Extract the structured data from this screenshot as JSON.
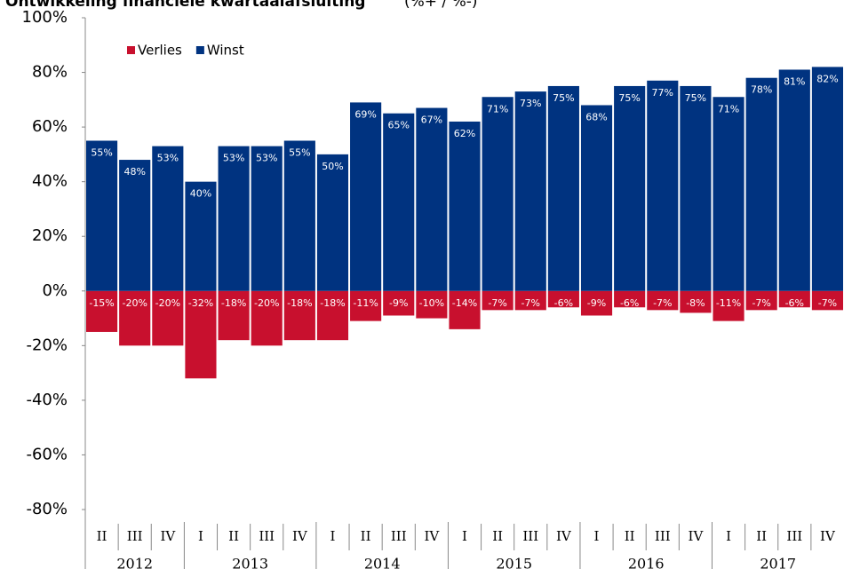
{
  "chart_data": {
    "type": "bar",
    "title": "Ontwikkeling financiele kwartaalafsluiting",
    "subtitle": "(%+ / %-)",
    "groups": [
      {
        "year": "2012",
        "quarters": [
          "II",
          "III",
          "IV"
        ]
      },
      {
        "year": "2013",
        "quarters": [
          "I",
          "II",
          "III",
          "IV"
        ]
      },
      {
        "year": "2014",
        "quarters": [
          "I",
          "II",
          "III",
          "IV"
        ]
      },
      {
        "year": "2015",
        "quarters": [
          "I",
          "II",
          "III",
          "IV"
        ]
      },
      {
        "year": "2016",
        "quarters": [
          "I",
          "II",
          "III",
          "IV"
        ]
      },
      {
        "year": "2017",
        "quarters": [
          "I",
          "II",
          "III",
          "IV"
        ]
      }
    ],
    "series": [
      {
        "name": "Verlies",
        "color": "#c8102e",
        "values": [
          -15,
          -20,
          -20,
          -32,
          -18,
          -20,
          -18,
          -18,
          -11,
          -9,
          -10,
          -14,
          -7,
          -7,
          -6,
          -9,
          -6,
          -7,
          -8,
          -11,
          -7,
          -6,
          -7
        ],
        "value_labels": [
          "-15%",
          "-20%",
          "-20%",
          "-32%",
          "-18%",
          "-20%",
          "-18%",
          "-18%",
          "-11%",
          "-9%",
          "-10%",
          "-14%",
          "-7%",
          "-7%",
          "-6%",
          "-9%",
          "-6%",
          "-7%",
          "-8%",
          "-11%",
          "-7%",
          "-6%",
          "-7%"
        ]
      },
      {
        "name": "Winst",
        "color": "#003380",
        "values": [
          55,
          48,
          53,
          40,
          53,
          53,
          55,
          50,
          69,
          65,
          67,
          62,
          71,
          73,
          75,
          68,
          75,
          77,
          75,
          71,
          78,
          81,
          82
        ],
        "value_labels": [
          "55%",
          "48%",
          "53%",
          "40%",
          "53%",
          "53%",
          "55%",
          "50%",
          "69%",
          "65%",
          "67%",
          "62%",
          "71%",
          "73%",
          "75%",
          "68%",
          "75%",
          "77%",
          "75%",
          "71%",
          "78%",
          "81%",
          "82%"
        ]
      }
    ],
    "ylim": [
      -80,
      100
    ],
    "yticks": [
      {
        "value": -80,
        "label": "-80%"
      },
      {
        "value": -60,
        "label": "-60%"
      },
      {
        "value": -40,
        "label": "-40%"
      },
      {
        "value": -20,
        "label": "-20%"
      },
      {
        "value": 0,
        "label": "0%"
      },
      {
        "value": 20,
        "label": "20%"
      },
      {
        "value": 40,
        "label": "40%"
      },
      {
        "value": 60,
        "label": "60%"
      },
      {
        "value": 80,
        "label": "80%"
      },
      {
        "value": 100,
        "label": "100%"
      }
    ],
    "legend": "top-left"
  }
}
